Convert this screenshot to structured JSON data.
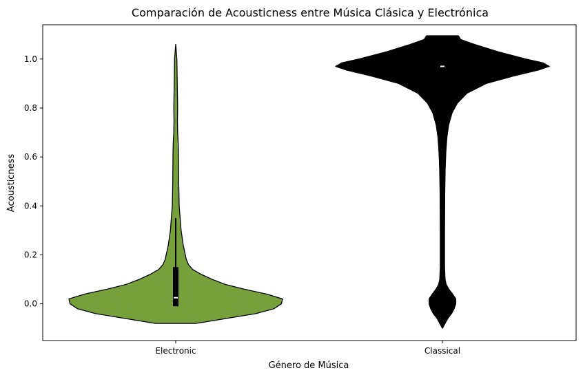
{
  "chart_data": {
    "type": "violin",
    "title": "Comparación de Acousticness entre Música Clásica y Electrónica",
    "xlabel": "Género de Música",
    "ylabel": "Acousticness",
    "ylim": [
      -0.15,
      1.14
    ],
    "yticks": [
      "0.0",
      "0.2",
      "0.4",
      "0.6",
      "0.8",
      "1.0"
    ],
    "categories": [
      "Electronic",
      "Classical"
    ],
    "colors": {
      "Electronic": "#77a03d",
      "Classical": "#000000",
      "inner_box": "#000000",
      "median_marker": "#ffffff"
    },
    "series": [
      {
        "name": "Electronic",
        "range": [
          -0.08,
          1.06
        ],
        "density_profile": [
          [
            -0.08,
            0.19
          ],
          [
            -0.06,
            0.47
          ],
          [
            -0.04,
            0.75
          ],
          [
            -0.02,
            0.92
          ],
          [
            0.0,
            0.99
          ],
          [
            0.02,
            1.0
          ],
          [
            0.04,
            0.85
          ],
          [
            0.06,
            0.64
          ],
          [
            0.08,
            0.46
          ],
          [
            0.1,
            0.34
          ],
          [
            0.12,
            0.24
          ],
          [
            0.14,
            0.16
          ],
          [
            0.16,
            0.12
          ],
          [
            0.18,
            0.1
          ],
          [
            0.2,
            0.09
          ],
          [
            0.24,
            0.07
          ],
          [
            0.3,
            0.05
          ],
          [
            0.4,
            0.032
          ],
          [
            0.5,
            0.028
          ],
          [
            0.6,
            0.026
          ],
          [
            0.65,
            0.024
          ],
          [
            0.7,
            0.018
          ],
          [
            0.75,
            0.016
          ],
          [
            0.8,
            0.018
          ],
          [
            0.9,
            0.014
          ],
          [
            1.0,
            0.011
          ],
          [
            1.06,
            0.0
          ]
        ],
        "median": 0.025,
        "q1": -0.01,
        "q3": 0.15,
        "whisker_low": -0.01,
        "whisker_high": 0.35
      },
      {
        "name": "Classical",
        "range": [
          -0.1,
          1.095
        ],
        "density_profile": [
          [
            -0.1,
            0.0
          ],
          [
            -0.08,
            0.025
          ],
          [
            -0.06,
            0.05
          ],
          [
            -0.04,
            0.085
          ],
          [
            -0.02,
            0.11
          ],
          [
            0.0,
            0.125
          ],
          [
            0.02,
            0.125
          ],
          [
            0.04,
            0.095
          ],
          [
            0.06,
            0.06
          ],
          [
            0.08,
            0.035
          ],
          [
            0.1,
            0.025
          ],
          [
            0.15,
            0.02
          ],
          [
            0.3,
            0.02
          ],
          [
            0.45,
            0.022
          ],
          [
            0.55,
            0.026
          ],
          [
            0.62,
            0.032
          ],
          [
            0.68,
            0.042
          ],
          [
            0.73,
            0.058
          ],
          [
            0.78,
            0.09
          ],
          [
            0.82,
            0.14
          ],
          [
            0.86,
            0.23
          ],
          [
            0.9,
            0.41
          ],
          [
            0.93,
            0.66
          ],
          [
            0.955,
            0.9
          ],
          [
            0.97,
            1.0
          ],
          [
            0.985,
            0.94
          ],
          [
            1.0,
            0.78
          ],
          [
            1.03,
            0.52
          ],
          [
            1.06,
            0.3
          ],
          [
            1.08,
            0.17
          ],
          [
            1.095,
            0.15
          ]
        ],
        "median": 0.97,
        "q1": 0.965,
        "q3": 0.975,
        "whisker_low": 0.96,
        "whisker_high": 0.98
      }
    ]
  }
}
